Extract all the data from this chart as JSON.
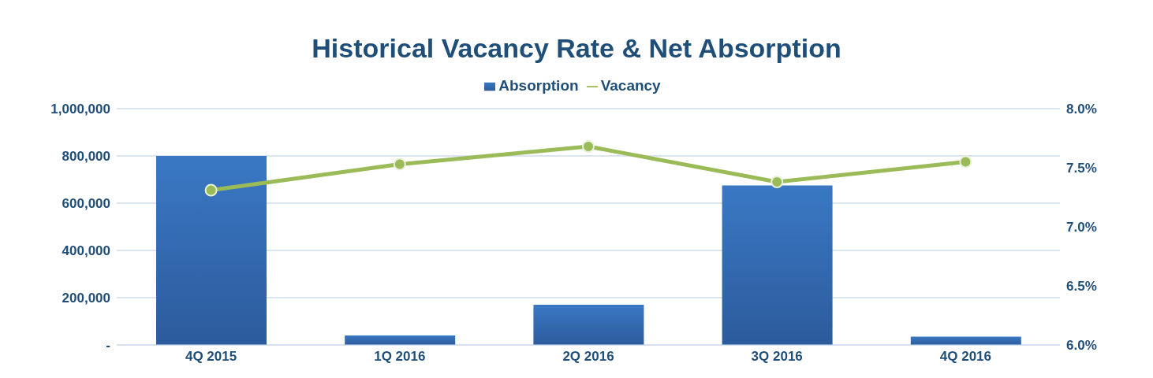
{
  "chart_data": {
    "type": "bar",
    "title": "Historical Vacancy Rate & Net Absorption",
    "categories": [
      "4Q 2015",
      "1Q 2016",
      "2Q 2016",
      "3Q 2016",
      "4Q 2016"
    ],
    "series": [
      {
        "name": "Absorption",
        "color": "#3a78c4",
        "values": [
          800000,
          40000,
          170000,
          675000,
          35000
        ]
      },
      {
        "name": "Vacancy",
        "type": "line",
        "axis": "y2",
        "color": "#9bbb59",
        "marker": "circle",
        "values": [
          7.31,
          7.53,
          7.68,
          7.38,
          7.55
        ]
      }
    ],
    "ylim": [
      0,
      1000000
    ],
    "yticks": [
      {
        "value": 0,
        "label": "-"
      },
      {
        "value": 200000,
        "label": "200,000"
      },
      {
        "value": 400000,
        "label": "400,000"
      },
      {
        "value": 600000,
        "label": "600,000"
      },
      {
        "value": 800000,
        "label": "800,000"
      },
      {
        "value": 1000000,
        "label": "1,000,000"
      }
    ],
    "y2lim": [
      6,
      8
    ],
    "y2ticks": [
      {
        "value": 6,
        "label": "6.0%"
      },
      {
        "value": 6.5,
        "label": "6.5%"
      },
      {
        "value": 7,
        "label": "7.0%"
      },
      {
        "value": 7.5,
        "label": "7.5%"
      },
      {
        "value": 8,
        "label": "8.0%"
      }
    ],
    "grid": "y",
    "legend": "top"
  }
}
